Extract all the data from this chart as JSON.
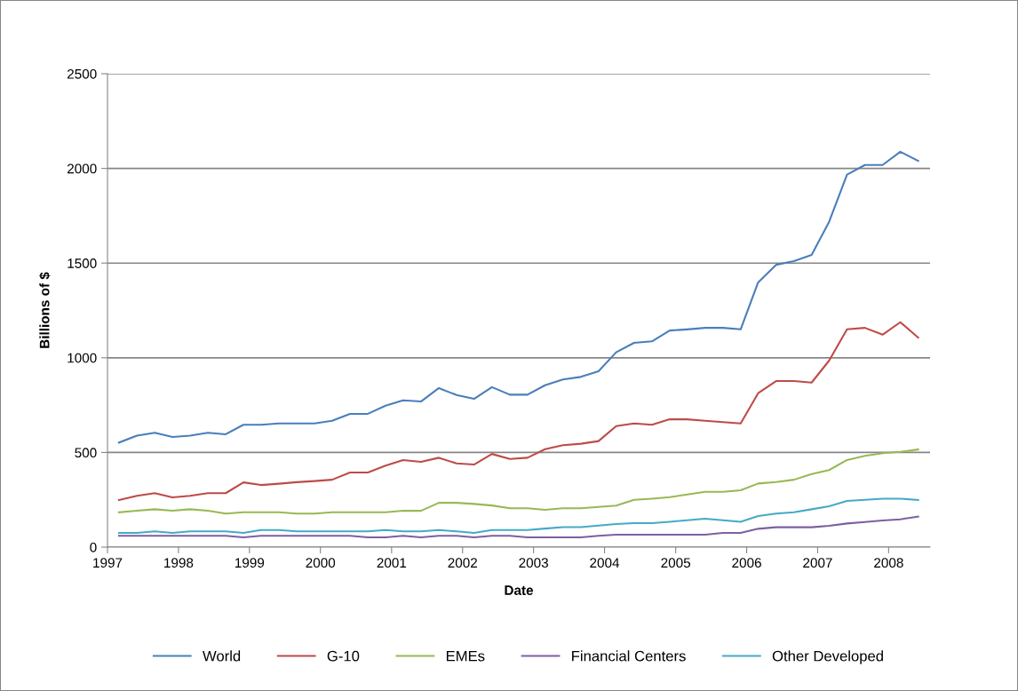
{
  "chart_data": {
    "type": "line",
    "xlabel": "Date",
    "ylabel": "Billions of $",
    "x": [
      "1997-03",
      "1997-06",
      "1997-09",
      "1997-12",
      "1998-03",
      "1998-06",
      "1998-09",
      "1998-12",
      "1999-03",
      "1999-06",
      "1999-09",
      "1999-12",
      "2000-03",
      "2000-06",
      "2000-09",
      "2000-12",
      "2001-03",
      "2001-06",
      "2001-09",
      "2001-12",
      "2002-03",
      "2002-06",
      "2002-09",
      "2002-12",
      "2003-03",
      "2003-06",
      "2003-09",
      "2003-12",
      "2004-03",
      "2004-06",
      "2004-09",
      "2004-12",
      "2005-03",
      "2005-06",
      "2005-09",
      "2005-12",
      "2006-03",
      "2006-06",
      "2006-09",
      "2006-12",
      "2007-03",
      "2007-06",
      "2007-09",
      "2007-12",
      "2008-03",
      "2008-06"
    ],
    "series": [
      {
        "name": "World",
        "color": "#4a7ebb",
        "values": [
          552,
          589,
          604,
          582,
          589,
          604,
          596,
          646,
          646,
          653,
          653,
          653,
          667,
          704,
          704,
          747,
          775,
          769,
          840,
          803,
          783,
          845,
          805,
          805,
          855,
          885,
          899,
          929,
          1029,
          1079,
          1087,
          1144,
          1150,
          1158,
          1158,
          1150,
          1398,
          1491,
          1510,
          1543,
          1718,
          1967,
          2018,
          2018,
          2088,
          2040
        ]
      },
      {
        "name": "G-10",
        "color": "#be4b48",
        "values": [
          249,
          271,
          285,
          263,
          271,
          285,
          285,
          342,
          328,
          335,
          343,
          349,
          356,
          394,
          394,
          430,
          460,
          450,
          472,
          442,
          436,
          492,
          466,
          472,
          517,
          538,
          546,
          560,
          639,
          653,
          646,
          675,
          675,
          667,
          660,
          653,
          813,
          877,
          877,
          869,
          985,
          1150,
          1158,
          1122,
          1188,
          1107
        ]
      },
      {
        "name": "EMEs",
        "color": "#98b954",
        "values": [
          184,
          192,
          200,
          192,
          200,
          192,
          177,
          184,
          184,
          184,
          177,
          177,
          184,
          184,
          184,
          184,
          192,
          192,
          234,
          234,
          228,
          220,
          205,
          205,
          197,
          205,
          205,
          212,
          219,
          250,
          256,
          264,
          278,
          292,
          292,
          300,
          336,
          344,
          356,
          386,
          407,
          460,
          482,
          496,
          503,
          516
        ]
      },
      {
        "name": "Financial Centers",
        "color": "#7d60a0",
        "values": [
          60,
          60,
          60,
          60,
          60,
          60,
          60,
          52,
          60,
          60,
          60,
          60,
          60,
          60,
          52,
          52,
          60,
          52,
          60,
          60,
          52,
          60,
          60,
          52,
          52,
          52,
          52,
          60,
          66,
          66,
          66,
          66,
          66,
          66,
          75,
          75,
          97,
          105,
          105,
          105,
          113,
          125,
          133,
          141,
          147,
          161
        ]
      },
      {
        "name": "Other Developed",
        "color": "#46aac5",
        "values": [
          75,
          75,
          83,
          75,
          83,
          83,
          83,
          75,
          90,
          90,
          83,
          83,
          83,
          83,
          83,
          90,
          83,
          83,
          90,
          83,
          75,
          90,
          90,
          90,
          98,
          106,
          106,
          114,
          122,
          127,
          127,
          134,
          142,
          150,
          142,
          134,
          164,
          177,
          184,
          200,
          216,
          244,
          250,
          256,
          256,
          249
        ]
      }
    ],
    "xlim": [
      "1997-01",
      "2008-08"
    ],
    "xticks": [
      {
        "value": "1997",
        "label": "1997"
      },
      {
        "value": "1998",
        "label": "1998"
      },
      {
        "value": "1999",
        "label": "1999"
      },
      {
        "value": "2000",
        "label": "2000"
      },
      {
        "value": "2001",
        "label": "2001"
      },
      {
        "value": "2002",
        "label": "2002"
      },
      {
        "value": "2003",
        "label": "2003"
      },
      {
        "value": "2004",
        "label": "2004"
      },
      {
        "value": "2005",
        "label": "2005"
      },
      {
        "value": "2006",
        "label": "2006"
      },
      {
        "value": "2007",
        "label": "2007"
      },
      {
        "value": "2008",
        "label": "2008"
      }
    ],
    "ylim": [
      0,
      2500
    ],
    "yticks": [
      0,
      500,
      1000,
      1500,
      2000,
      2500
    ],
    "grid": "y",
    "legend": "bottom",
    "marker": "none",
    "line_style": "solid"
  }
}
